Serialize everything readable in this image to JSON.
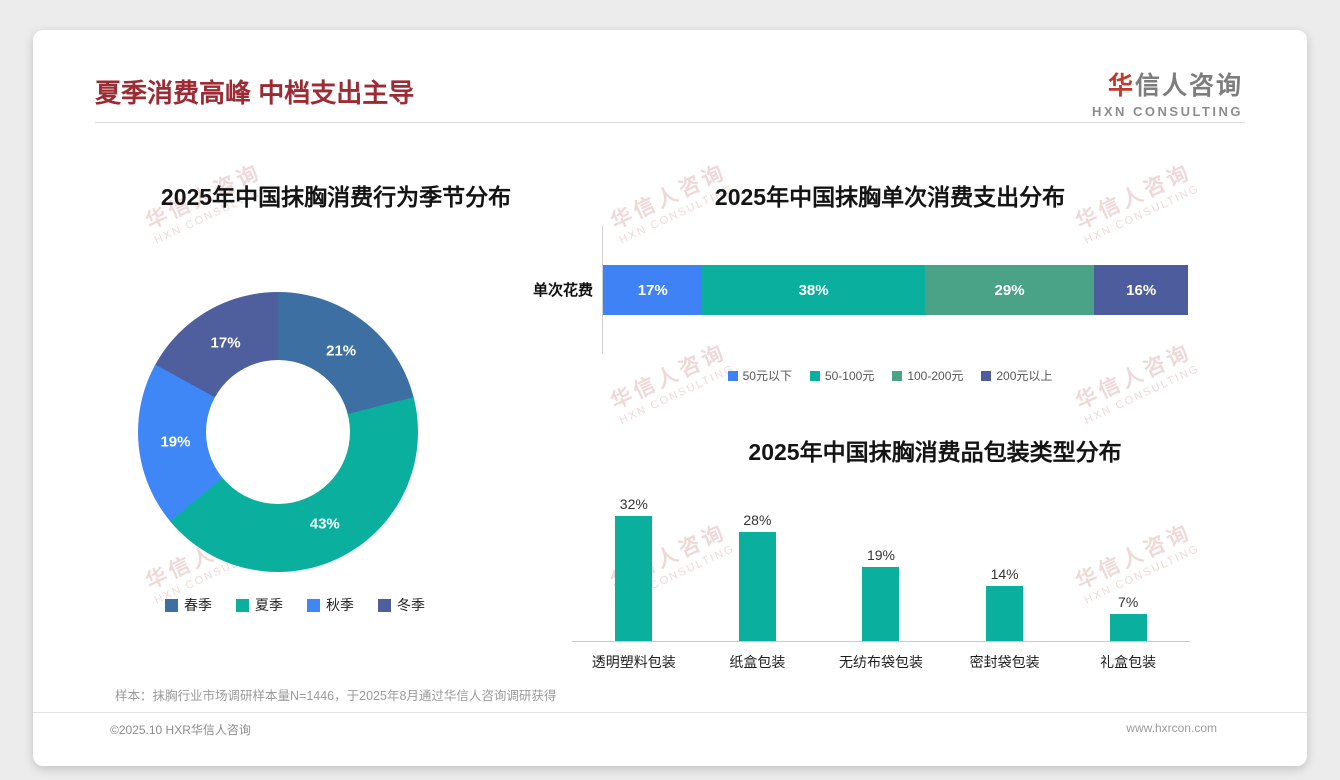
{
  "page": {
    "title": "夏季消费高峰 中档支出主导",
    "logo": {
      "cn_first": "华",
      "cn_rest": "信人咨询",
      "en": "HXN CONSULTING"
    },
    "watermark": {
      "line1": "华信人咨询",
      "line2": "HXN CONSULTING"
    },
    "footnote": "样本：抹胸行业市场调研样本量N=1446，于2025年8月通过华信人咨询调研获得",
    "footer_left": "©2025.10 HXR华信人咨询",
    "footer_right": "www.hxrcon.com"
  },
  "colors": {
    "title_red": "#9c2b33",
    "logo_red": "#c0392b",
    "teal": "#0aaf9d"
  },
  "chart_data": [
    {
      "type": "pie",
      "donut": true,
      "title": "2025年中国抹胸消费行为季节分布",
      "labels": [
        "春季",
        "夏季",
        "秋季",
        "冬季"
      ],
      "values": [
        21,
        43,
        19,
        17
      ],
      "data_labels": [
        "21%",
        "43%",
        "19%",
        "17%"
      ],
      "colors": [
        "#3d6fa3",
        "#0aaf9d",
        "#3f87f6",
        "#4f5f9e"
      ],
      "legend_position": "bottom"
    },
    {
      "type": "bar",
      "variant": "stacked-horizontal",
      "title": "2025年中国抹胸单次消费支出分布",
      "category": "单次花费",
      "series": [
        {
          "name": "50元以下",
          "value": 17,
          "label": "17%",
          "color": "#3f82f5"
        },
        {
          "name": "50-100元",
          "value": 38,
          "label": "38%",
          "color": "#0aaf9d"
        },
        {
          "name": "100-200元",
          "value": 29,
          "label": "29%",
          "color": "#4aa287"
        },
        {
          "name": "200元以上",
          "value": 16,
          "label": "16%",
          "color": "#4c5c9c"
        }
      ],
      "xlim": [
        0,
        100
      ],
      "legend_position": "bottom"
    },
    {
      "type": "bar",
      "title": "2025年中国抹胸消费品包装类型分布",
      "categories": [
        "透明塑料包装",
        "纸盒包装",
        "无纺布袋包装",
        "密封袋包装",
        "礼盒包装"
      ],
      "values": [
        32,
        28,
        19,
        14,
        7
      ],
      "data_labels": [
        "32%",
        "28%",
        "19%",
        "14%",
        "7%"
      ],
      "bar_color": "#0aaf9d",
      "ylim": [
        0,
        35
      ],
      "grid": false
    }
  ]
}
